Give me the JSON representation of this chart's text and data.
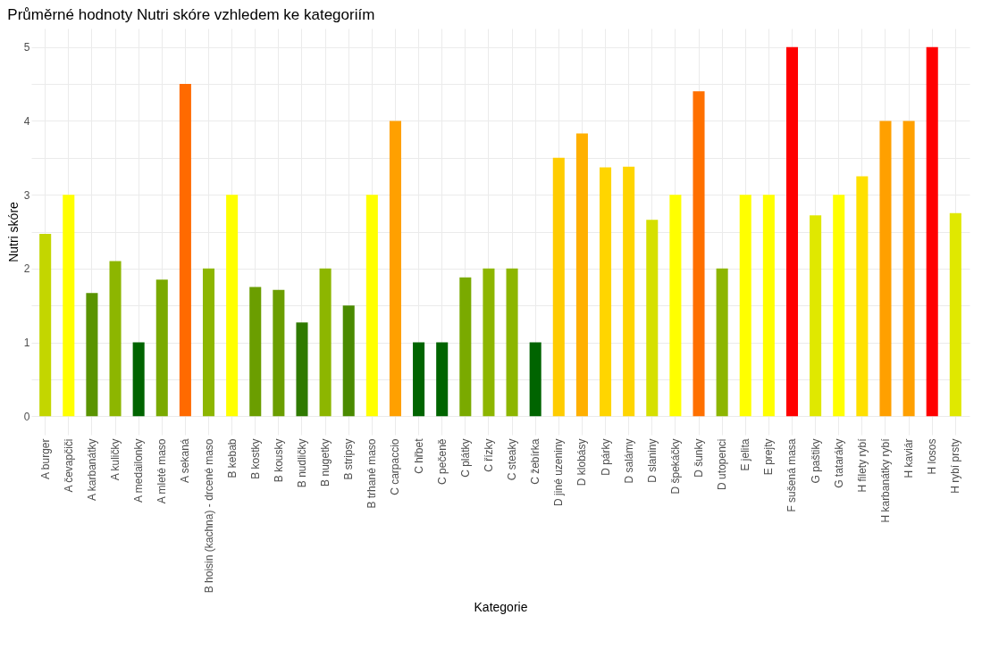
{
  "chart_data": {
    "type": "bar",
    "title": "Průměrné hodnoty Nutri skóre vzhledem ke kategoriím",
    "xlabel": "Kategorie",
    "ylabel": "Nutri skóre",
    "categories": [
      "A burger",
      "A čevapčiči",
      "A karbanátky",
      "A kuličky",
      "A medailonky",
      "A mleté maso",
      "A sekaná",
      "B hoisin (kachna) - drcené maso",
      "B kebab",
      "B kostky",
      "B kousky",
      "B nudličky",
      "B nugetky",
      "B stripsy",
      "B trhané maso",
      "C carpaccio",
      "C hřbet",
      "C pečeně",
      "C plátky",
      "C řízky",
      "C steaky",
      "C žebírka",
      "D jiné uzeniny",
      "D klobásy",
      "D párky",
      "D salámy",
      "D slaniny",
      "D špekáčky",
      "D šunky",
      "D utopenci",
      "E jelita",
      "E prejty",
      "F sušená masa",
      "G paštiky",
      "G tataráky",
      "H filety rybí",
      "H karbanátky rybí",
      "H kaviár",
      "H losos",
      "H rybí prsty"
    ],
    "values": [
      2.47,
      3,
      1.67,
      2.1,
      1,
      1.85,
      4.5,
      2,
      3,
      1.75,
      1.71,
      1.27,
      2,
      1.5,
      3,
      4,
      1,
      1,
      1.88,
      2,
      2,
      1,
      3.5,
      3.83,
      3.37,
      3.38,
      2.66,
      3,
      4.4,
      2,
      3,
      3,
      5,
      2.72,
      3,
      3.25,
      4,
      4,
      5,
      2.75
    ],
    "colors": [
      "#c3d600",
      "#ffff00",
      "#5a9400",
      "#8db600",
      "#006400",
      "#7aaa00",
      "#ff6a00",
      "#8db600",
      "#ffff00",
      "#6b9e00",
      "#6b9e00",
      "#2f7a00",
      "#8db600",
      "#4a8a00",
      "#ffff00",
      "#ffa000",
      "#006400",
      "#006400",
      "#7aaa00",
      "#8db600",
      "#8db600",
      "#006400",
      "#ffcc00",
      "#ffb000",
      "#ffd500",
      "#ffd500",
      "#d6e000",
      "#ffff00",
      "#ff7000",
      "#8db600",
      "#ffff00",
      "#ffff00",
      "#ff0000",
      "#e0e800",
      "#ffff00",
      "#ffe000",
      "#ffa000",
      "#ffa000",
      "#ff0000",
      "#e0e800"
    ],
    "ylim": [
      -0.25,
      5.25
    ],
    "yticks": [
      0,
      {
        "value": 0.5,
        "label": null
      },
      1,
      {
        "value": 1.5,
        "label": null
      },
      2,
      {
        "value": 2.5,
        "label": null
      },
      3,
      {
        "value": 3.5,
        "label": null
      },
      4,
      {
        "value": 4.5,
        "label": null
      },
      5
    ],
    "grid": true
  }
}
